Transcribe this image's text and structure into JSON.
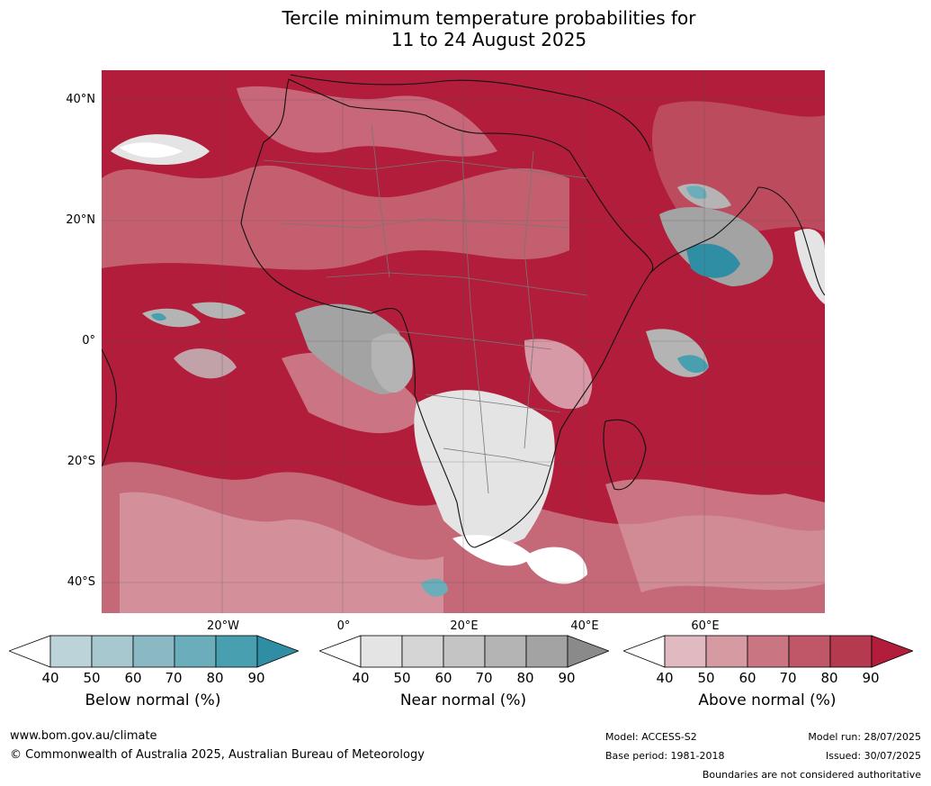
{
  "title": {
    "line1": "Tercile minimum temperature probabilities for",
    "line2": "11 to 24 August 2025"
  },
  "map": {
    "lat_labels": [
      "40°N",
      "20°N",
      "0°",
      "20°S",
      "40°S"
    ],
    "lon_labels": [
      "20°W",
      "0°",
      "20°E",
      "40°E",
      "60°E"
    ]
  },
  "colorbars": [
    {
      "label": "Below normal (%)",
      "ticks": [
        "40",
        "50",
        "60",
        "70",
        "80",
        "90"
      ],
      "colors": [
        "#ffffff",
        "#bdd3da",
        "#a7c8cf",
        "#8ab8c3",
        "#6badba",
        "#479fb0",
        "#2f8ea3"
      ]
    },
    {
      "label": "Near normal (%)",
      "ticks": [
        "40",
        "50",
        "60",
        "70",
        "80",
        "90"
      ],
      "colors": [
        "#ffffff",
        "#e4e4e4",
        "#d5d5d5",
        "#c4c4c4",
        "#b4b4b4",
        "#a3a3a3",
        "#8a8a8a"
      ]
    },
    {
      "label": "Above normal (%)",
      "ticks": [
        "40",
        "50",
        "60",
        "70",
        "80",
        "90"
      ],
      "colors": [
        "#ffffff",
        "#e1b9c0",
        "#d69aa3",
        "#c97682",
        "#bf5768",
        "#b63a4f",
        "#b11d3a"
      ]
    }
  ],
  "footer": {
    "url": "www.bom.gov.au/climate",
    "copyright": "© Commonwealth of Australia 2025, Australian Bureau of Meteorology",
    "model": "Model: ACCESS-S2",
    "base_period": "Base period: 1981-2018",
    "model_run": "Model run: 28/07/2025",
    "issued": "Issued: 30/07/2025",
    "disclaimer": "Boundaries are not considered authoritative"
  }
}
